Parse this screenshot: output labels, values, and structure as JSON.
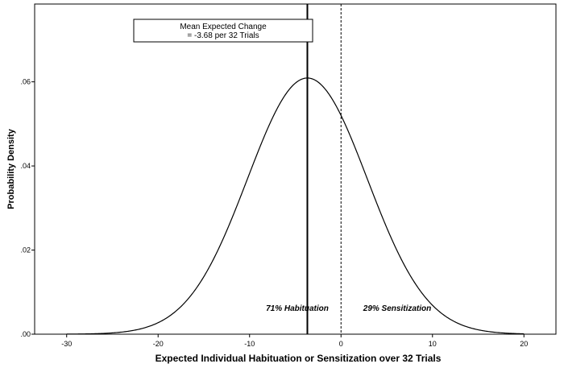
{
  "chart_data": {
    "type": "line",
    "title": "",
    "xlabel": "Expected Individual Habituation or Sensitization over 32 Trials",
    "ylabel": "Probability Density",
    "xlim": [
      -33.5,
      23.5
    ],
    "ylim": [
      0,
      0.0785
    ],
    "grid": false,
    "x_ticks": [
      -30,
      -20,
      -10,
      0,
      10,
      20
    ],
    "x_tick_labels": [
      "-30",
      "-20",
      "-10",
      "0",
      "10",
      "20"
    ],
    "y_ticks": [
      0,
      0.02,
      0.04,
      0.06
    ],
    "y_tick_labels": [
      ".00",
      ".02",
      ".04",
      ".06"
    ],
    "curve": {
      "kind": "normal",
      "mean": -3.68,
      "sd": 6.55,
      "x_range": [
        -30,
        20
      ]
    },
    "vertical_lines": [
      {
        "x": -3.68,
        "style": "solid"
      },
      {
        "x": 0,
        "style": "dashed"
      }
    ],
    "annotation_box": {
      "line1": "Mean Expected Change",
      "line2": "= -3.68 per 32 Trials"
    },
    "region_labels": {
      "left": "71% Habituation",
      "right": "29% Sensitization"
    }
  }
}
